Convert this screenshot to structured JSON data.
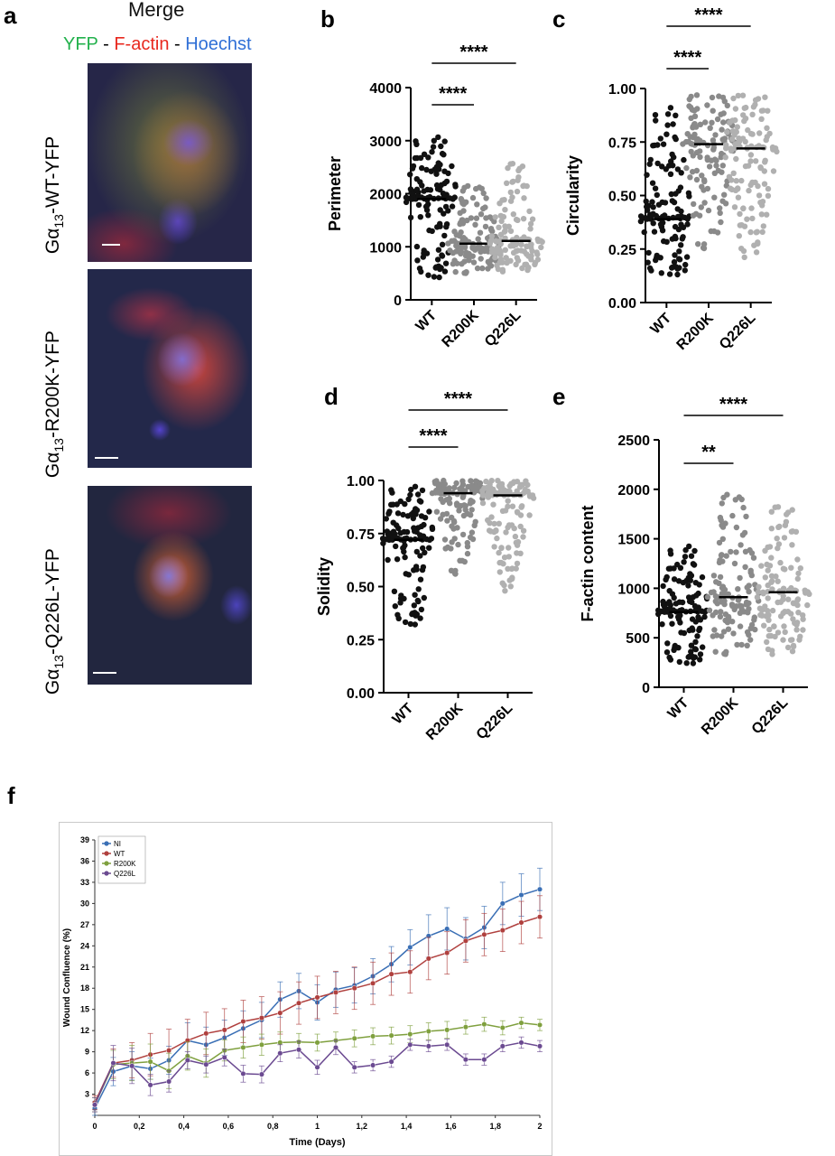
{
  "panels": {
    "a": "a",
    "b": "b",
    "c": "c",
    "d": "d",
    "e": "e",
    "f": "f"
  },
  "panel_a": {
    "title": "Merge",
    "legend": [
      {
        "text": "YFP",
        "color": "#22b14c"
      },
      {
        "text": " - ",
        "color": "#000000"
      },
      {
        "text": "F-actin",
        "color": "#e8281e"
      },
      {
        "text": " - ",
        "color": "#000000"
      },
      {
        "text": "Hoechst",
        "color": "#2f6fd6"
      }
    ],
    "rows": [
      {
        "prefix": "Gα",
        "sub": "13",
        "suffix": "-WT-YFP"
      },
      {
        "prefix": "Gα",
        "sub": "13",
        "suffix": "-R200K-YFP"
      },
      {
        "prefix": "Gα",
        "sub": "13",
        "suffix": "-Q226L-YFP"
      }
    ]
  },
  "chart_data": [
    {
      "id": "b",
      "type": "scatter",
      "categories": [
        "WT",
        "R200K",
        "Q226L"
      ],
      "ylabel": "Perimeter",
      "ylim": [
        0,
        4000
      ],
      "yticks": [
        0,
        1000,
        2000,
        3000,
        4000
      ],
      "medians": [
        1900,
        1060,
        1110
      ],
      "ranges": [
        [
          420,
          3200
        ],
        [
          430,
          2150
        ],
        [
          520,
          2580
        ]
      ],
      "point_colors": [
        "#111111",
        "#8a8a8a",
        "#b0b0b0"
      ],
      "significance": [
        {
          "from": 0,
          "to": 1,
          "label": "****"
        },
        {
          "from": 0,
          "to": 2,
          "label": "****"
        }
      ]
    },
    {
      "id": "c",
      "type": "scatter",
      "categories": [
        "WT",
        "R200K",
        "Q226L"
      ],
      "ylabel": "Circularity",
      "ylim": [
        0,
        1
      ],
      "yticks": [
        0.0,
        0.25,
        0.5,
        0.75,
        1.0
      ],
      "medians": [
        0.39,
        0.74,
        0.72
      ],
      "ranges": [
        [
          0.13,
          0.97
        ],
        [
          0.19,
          0.97
        ],
        [
          0.2,
          0.97
        ]
      ],
      "point_colors": [
        "#111111",
        "#8a8a8a",
        "#b0b0b0"
      ],
      "significance": [
        {
          "from": 0,
          "to": 1,
          "label": "****"
        },
        {
          "from": 0,
          "to": 2,
          "label": "****"
        }
      ]
    },
    {
      "id": "d",
      "type": "scatter",
      "categories": [
        "WT",
        "R200K",
        "Q226L"
      ],
      "ylabel": "Solidity",
      "ylim": [
        0,
        1
      ],
      "yticks": [
        0.0,
        0.25,
        0.5,
        0.75,
        1.0
      ],
      "medians": [
        0.72,
        0.94,
        0.93
      ],
      "ranges": [
        [
          0.32,
          1.0
        ],
        [
          0.51,
          1.0
        ],
        [
          0.47,
          1.0
        ]
      ],
      "point_colors": [
        "#111111",
        "#8a8a8a",
        "#b0b0b0"
      ],
      "significance": [
        {
          "from": 0,
          "to": 1,
          "label": "****"
        },
        {
          "from": 0,
          "to": 2,
          "label": "****"
        }
      ]
    },
    {
      "id": "e",
      "type": "scatter",
      "categories": [
        "WT",
        "R200K",
        "Q226L"
      ],
      "ylabel": "F-actin content",
      "ylim": [
        0,
        2500
      ],
      "yticks": [
        0,
        500,
        1000,
        1500,
        2000,
        2500
      ],
      "medians": [
        760,
        910,
        960
      ],
      "ranges": [
        [
          240,
          1500
        ],
        [
          260,
          1950
        ],
        [
          320,
          1830
        ]
      ],
      "point_colors": [
        "#111111",
        "#8a8a8a",
        "#b0b0b0"
      ],
      "significance": [
        {
          "from": 0,
          "to": 1,
          "label": "**"
        },
        {
          "from": 0,
          "to": 2,
          "label": "****"
        }
      ]
    },
    {
      "id": "f",
      "type": "line",
      "xlabel": "Time (Days)",
      "ylabel": "Wound Confluence (%)",
      "xlim": [
        0,
        2
      ],
      "ylim": [
        0,
        39
      ],
      "xticks": [
        0,
        0.2,
        0.4,
        0.6,
        0.8,
        1,
        1.2,
        1.4,
        1.6,
        1.8,
        2
      ],
      "xtick_labels": [
        "0",
        "0,2",
        "0,4",
        "0,6",
        "0,8",
        "1",
        "1,2",
        "1,4",
        "1,6",
        "1,8",
        "2"
      ],
      "yticks": [
        3,
        6,
        9,
        12,
        15,
        18,
        21,
        24,
        27,
        30,
        33,
        36,
        39
      ],
      "grid": false,
      "legend": "top-left",
      "x": [
        0,
        0.083,
        0.167,
        0.25,
        0.333,
        0.417,
        0.5,
        0.583,
        0.667,
        0.75,
        0.833,
        0.917,
        1.0,
        1.083,
        1.167,
        1.25,
        1.333,
        1.417,
        1.5,
        1.583,
        1.667,
        1.75,
        1.833,
        1.917,
        2.0
      ],
      "series": [
        {
          "name": "NI",
          "color": "#3a6fb5",
          "values": [
            1.0,
            6.2,
            7.0,
            6.6,
            7.8,
            10.6,
            10.0,
            11.0,
            12.3,
            13.5,
            16.4,
            17.6,
            16.0,
            17.8,
            18.4,
            19.7,
            21.4,
            23.8,
            25.4,
            26.4,
            25.0,
            26.6,
            30.0,
            31.2,
            32.0
          ],
          "errors": [
            1,
            2,
            2,
            1.5,
            2,
            2.5,
            2.5,
            2.5,
            2.5,
            2.5,
            2.5,
            2.5,
            2.5,
            2.5,
            2.5,
            2.5,
            2.5,
            2.5,
            3,
            3,
            3,
            3,
            3,
            3,
            3
          ]
        },
        {
          "name": "WT",
          "color": "#b0403e",
          "values": [
            1.8,
            7.4,
            7.8,
            8.6,
            9.2,
            10.6,
            11.6,
            12.1,
            13.3,
            13.8,
            14.5,
            15.9,
            16.7,
            17.4,
            18.0,
            18.7,
            20.0,
            20.3,
            22.2,
            23.0,
            24.7,
            25.6,
            26.2,
            27.3,
            28.1
          ],
          "errors": [
            1,
            2,
            2.5,
            3,
            3,
            3,
            3,
            3,
            3,
            3,
            3,
            3,
            3,
            3,
            3,
            3,
            3,
            3,
            3,
            3,
            3,
            3,
            3,
            3,
            3
          ]
        },
        {
          "name": "R200K",
          "color": "#7fa03e",
          "values": [
            1.5,
            7.2,
            7.4,
            7.6,
            6.3,
            8.4,
            7.4,
            9.2,
            9.6,
            10.0,
            10.3,
            10.4,
            10.3,
            10.6,
            10.9,
            11.2,
            11.3,
            11.5,
            11.9,
            12.1,
            12.5,
            12.9,
            12.4,
            13.1,
            12.8
          ],
          "errors": [
            1,
            2,
            2.5,
            2.5,
            2.5,
            2,
            2,
            1.5,
            1.5,
            1.5,
            1.5,
            1.2,
            1.2,
            1.2,
            1.2,
            1.2,
            1.2,
            1.2,
            1.2,
            1.2,
            1,
            1,
            1,
            0.8,
            0.8
          ]
        },
        {
          "name": "Q226L",
          "color": "#6b4a91",
          "values": [
            1.5,
            7.4,
            7.0,
            4.3,
            4.8,
            7.8,
            7.2,
            8.2,
            5.9,
            5.8,
            8.8,
            9.3,
            6.8,
            9.6,
            6.8,
            7.1,
            7.6,
            10.0,
            9.8,
            10.0,
            7.9,
            7.9,
            9.8,
            10.3,
            9.8
          ],
          "errors": [
            1,
            2.5,
            2.5,
            1.5,
            1.5,
            1.2,
            1.2,
            1.2,
            1.2,
            1.2,
            1.2,
            1.2,
            1,
            1,
            0.8,
            0.8,
            0.8,
            0.8,
            0.8,
            0.8,
            0.8,
            0.8,
            0.8,
            0.8,
            0.8
          ]
        }
      ]
    }
  ]
}
